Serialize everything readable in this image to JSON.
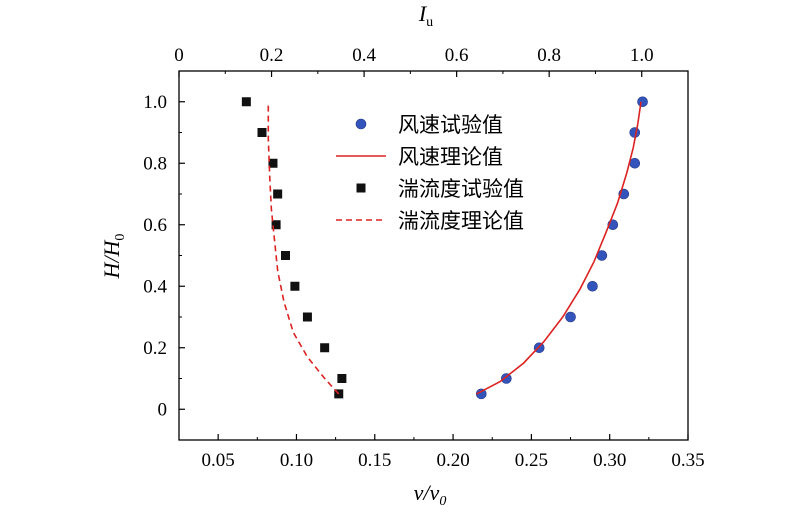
{
  "chart_data": {
    "type": "scatter",
    "bottom_axis": {
      "label_main": "v",
      "label_sub": "0",
      "label_text": "v/v",
      "range": [
        0.025,
        0.35
      ],
      "ticks": [
        "0.05",
        "0.10",
        "0.15",
        "0.20",
        "0.25",
        "0.30",
        "0.35"
      ],
      "tick_values": [
        0.05,
        0.1,
        0.15,
        0.2,
        0.25,
        0.3,
        0.35
      ]
    },
    "top_axis": {
      "label_main": "I",
      "label_sub": "u",
      "range": [
        0.0,
        1.1
      ],
      "ticks": [
        "0",
        "0.2",
        "0.4",
        "0.6",
        "0.8",
        "1.0"
      ],
      "tick_values": [
        0,
        0.2,
        0.4,
        0.6,
        0.8,
        1.0
      ]
    },
    "left_axis": {
      "label_main": "H/H",
      "label_sub": "0",
      "range": [
        -0.1,
        1.1
      ],
      "ticks": [
        "0",
        "0.2",
        "0.4",
        "0.6",
        "0.8",
        "1.0"
      ],
      "tick_values": [
        0,
        0.2,
        0.4,
        0.6,
        0.8,
        1.0
      ]
    },
    "series": [
      {
        "name": "风速试验值",
        "kind": "markers",
        "marker": "circle",
        "color": "#3355bb",
        "axis": "bottom",
        "x": [
          0.218,
          0.234,
          0.255,
          0.275,
          0.289,
          0.295,
          0.302,
          0.309,
          0.316,
          0.316,
          0.321
        ],
        "y": [
          0.05,
          0.1,
          0.2,
          0.3,
          0.4,
          0.5,
          0.6,
          0.7,
          0.8,
          0.9,
          1.0
        ]
      },
      {
        "name": "风速理论值",
        "kind": "line",
        "dash": false,
        "color": "#dd2222",
        "axis": "bottom",
        "x": [
          0.215,
          0.23,
          0.245,
          0.258,
          0.27,
          0.281,
          0.29,
          0.298,
          0.305,
          0.311,
          0.315,
          0.318,
          0.32
        ],
        "y": [
          0.05,
          0.09,
          0.15,
          0.22,
          0.3,
          0.39,
          0.48,
          0.58,
          0.67,
          0.77,
          0.85,
          0.93,
          1.0
        ]
      },
      {
        "name": "湍流度试验值",
        "kind": "markers",
        "marker": "square",
        "color": "#111111",
        "axis": "bottom",
        "x": [
          0.127,
          0.129,
          0.118,
          0.107,
          0.099,
          0.093,
          0.087,
          0.088,
          0.085,
          0.078,
          0.068
        ],
        "y": [
          0.05,
          0.1,
          0.2,
          0.3,
          0.4,
          0.5,
          0.6,
          0.7,
          0.8,
          0.9,
          1.0
        ]
      },
      {
        "name": "湍流度理论值",
        "kind": "line",
        "dash": true,
        "color": "#dd2222",
        "axis": "bottom",
        "x": [
          0.127,
          0.118,
          0.107,
          0.098,
          0.092,
          0.088,
          0.086,
          0.084,
          0.083,
          0.082,
          0.082
        ],
        "y": [
          0.05,
          0.1,
          0.17,
          0.25,
          0.35,
          0.45,
          0.55,
          0.65,
          0.75,
          0.88,
          1.0
        ]
      }
    ],
    "legend_position": "top-right-inside",
    "grid": false
  }
}
